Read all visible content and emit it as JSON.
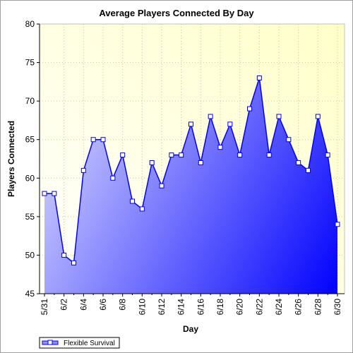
{
  "chart_data": {
    "type": "area",
    "title": "Average Players Connected By Day",
    "xlabel": "Day",
    "ylabel": "Players Connected",
    "ylim": [
      45,
      80
    ],
    "yticks": [
      45,
      50,
      55,
      60,
      65,
      70,
      75,
      80
    ],
    "grid": true,
    "legend_position": "bottom-left",
    "categories": [
      "5/31",
      "6/1",
      "6/2",
      "6/3",
      "6/4",
      "6/5",
      "6/6",
      "6/7",
      "6/8",
      "6/9",
      "6/10",
      "6/11",
      "6/12",
      "6/13",
      "6/14",
      "6/15",
      "6/16",
      "6/17",
      "6/18",
      "6/19",
      "6/20",
      "6/21",
      "6/22",
      "6/23",
      "6/24",
      "6/25",
      "6/26",
      "6/27",
      "6/28",
      "6/29",
      "6/30"
    ],
    "x_tick_labels": [
      "5/31",
      "6/2",
      "6/4",
      "6/6",
      "6/8",
      "6/10",
      "6/12",
      "6/14",
      "6/16",
      "6/18",
      "6/20",
      "6/22",
      "6/24",
      "6/26",
      "6/28",
      "6/30"
    ],
    "series": [
      {
        "name": "Flexible Survival",
        "values": [
          58,
          58,
          50,
          49,
          61,
          65,
          65,
          60,
          63,
          57,
          56,
          62,
          59,
          63,
          63,
          67,
          62,
          68,
          64,
          67,
          63,
          69,
          73,
          63,
          68,
          65,
          62,
          61,
          68,
          63,
          54
        ]
      }
    ],
    "colors": {
      "plot_background_top": "#ffffc8",
      "plot_background_bottom": "#ffffff",
      "area_light": "#d0d0ff",
      "area_dark": "#0000ff",
      "line": "#0000ff",
      "marker_fill": "#ffffff"
    }
  }
}
